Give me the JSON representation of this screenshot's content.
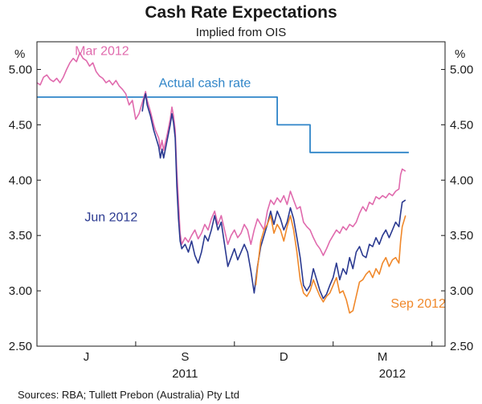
{
  "chart_data": {
    "type": "line",
    "title": "Cash Rate Expectations",
    "subtitle": "Implied from OIS",
    "unit_left": "%",
    "unit_right": "%",
    "ylim": [
      2.5,
      5.25
    ],
    "yticks": [
      "5.00",
      "4.50",
      "4.00",
      "3.50",
      "3.00",
      "2.50"
    ],
    "ytick_values": [
      5.0,
      4.5,
      4.0,
      3.5,
      3.0,
      2.5
    ],
    "x_range_months": [
      0,
      12.4
    ],
    "month_ticks": [
      0,
      3,
      6,
      9,
      12
    ],
    "month_labels": [
      {
        "label": "J",
        "month": 1.5
      },
      {
        "label": "S",
        "month": 4.5
      },
      {
        "label": "D",
        "month": 7.5
      },
      {
        "label": "M",
        "month": 10.5
      }
    ],
    "year_labels": [
      {
        "label": "2011",
        "month": 4.5
      },
      {
        "label": "2012",
        "month": 10.8
      }
    ],
    "source": "Sources: RBA; Tullett Prebon (Australia) Pty Ltd",
    "series": [
      {
        "name": "Actual cash rate",
        "color": "#2f85c8",
        "label_month": 3.7,
        "label_value": 4.84,
        "points": [
          [
            0,
            4.75
          ],
          [
            7.3,
            4.75
          ],
          [
            7.3,
            4.5
          ],
          [
            8.3,
            4.5
          ],
          [
            8.3,
            4.25
          ],
          [
            11.3,
            4.25
          ]
        ]
      },
      {
        "name": "Mar 2012",
        "color": "#e06aad",
        "label_month": 1.15,
        "label_value": 5.13,
        "points": [
          [
            0,
            4.88
          ],
          [
            0.1,
            4.86
          ],
          [
            0.2,
            4.93
          ],
          [
            0.3,
            4.95
          ],
          [
            0.4,
            4.91
          ],
          [
            0.5,
            4.89
          ],
          [
            0.6,
            4.92
          ],
          [
            0.7,
            4.88
          ],
          [
            0.8,
            4.93
          ],
          [
            0.9,
            5.0
          ],
          [
            1.0,
            5.06
          ],
          [
            1.1,
            5.1
          ],
          [
            1.2,
            5.07
          ],
          [
            1.3,
            5.15
          ],
          [
            1.4,
            5.1
          ],
          [
            1.5,
            5.08
          ],
          [
            1.6,
            5.03
          ],
          [
            1.7,
            5.06
          ],
          [
            1.8,
            4.98
          ],
          [
            1.9,
            4.94
          ],
          [
            2.0,
            4.92
          ],
          [
            2.1,
            4.88
          ],
          [
            2.2,
            4.9
          ],
          [
            2.3,
            4.86
          ],
          [
            2.4,
            4.9
          ],
          [
            2.5,
            4.85
          ],
          [
            2.6,
            4.82
          ],
          [
            2.7,
            4.78
          ],
          [
            2.8,
            4.68
          ],
          [
            2.9,
            4.72
          ],
          [
            3.0,
            4.55
          ],
          [
            3.1,
            4.6
          ],
          [
            3.2,
            4.7
          ],
          [
            3.3,
            4.8
          ],
          [
            3.35,
            4.72
          ],
          [
            3.45,
            4.62
          ],
          [
            3.55,
            4.5
          ],
          [
            3.6,
            4.45
          ],
          [
            3.7,
            4.38
          ],
          [
            3.75,
            4.28
          ],
          [
            3.8,
            4.36
          ],
          [
            3.85,
            4.27
          ],
          [
            3.95,
            4.4
          ],
          [
            4.05,
            4.55
          ],
          [
            4.1,
            4.66
          ],
          [
            4.15,
            4.58
          ],
          [
            4.2,
            4.45
          ],
          [
            4.25,
            4.08
          ],
          [
            4.3,
            3.8
          ],
          [
            4.35,
            3.52
          ],
          [
            4.4,
            3.42
          ],
          [
            4.5,
            3.48
          ],
          [
            4.6,
            3.44
          ],
          [
            4.7,
            3.5
          ],
          [
            4.8,
            3.55
          ],
          [
            4.9,
            3.47
          ],
          [
            5.0,
            3.52
          ],
          [
            5.1,
            3.6
          ],
          [
            5.2,
            3.55
          ],
          [
            5.3,
            3.65
          ],
          [
            5.4,
            3.72
          ],
          [
            5.5,
            3.6
          ],
          [
            5.6,
            3.68
          ],
          [
            5.7,
            3.55
          ],
          [
            5.8,
            3.42
          ],
          [
            5.9,
            3.5
          ],
          [
            6.0,
            3.55
          ],
          [
            6.1,
            3.48
          ],
          [
            6.2,
            3.52
          ],
          [
            6.3,
            3.6
          ],
          [
            6.4,
            3.55
          ],
          [
            6.5,
            3.42
          ],
          [
            6.6,
            3.55
          ],
          [
            6.7,
            3.65
          ],
          [
            6.8,
            3.6
          ],
          [
            6.9,
            3.55
          ],
          [
            7.0,
            3.72
          ],
          [
            7.1,
            3.82
          ],
          [
            7.2,
            3.78
          ],
          [
            7.3,
            3.84
          ],
          [
            7.4,
            3.8
          ],
          [
            7.5,
            3.86
          ],
          [
            7.6,
            3.78
          ],
          [
            7.7,
            3.9
          ],
          [
            7.8,
            3.82
          ],
          [
            7.9,
            3.74
          ],
          [
            8.0,
            3.76
          ],
          [
            8.1,
            3.62
          ],
          [
            8.2,
            3.58
          ],
          [
            8.3,
            3.55
          ],
          [
            8.4,
            3.48
          ],
          [
            8.5,
            3.42
          ],
          [
            8.6,
            3.38
          ],
          [
            8.7,
            3.32
          ],
          [
            8.8,
            3.38
          ],
          [
            8.9,
            3.45
          ],
          [
            9.0,
            3.5
          ],
          [
            9.1,
            3.55
          ],
          [
            9.2,
            3.52
          ],
          [
            9.3,
            3.58
          ],
          [
            9.4,
            3.55
          ],
          [
            9.5,
            3.6
          ],
          [
            9.6,
            3.58
          ],
          [
            9.7,
            3.62
          ],
          [
            9.8,
            3.7
          ],
          [
            9.9,
            3.76
          ],
          [
            10.0,
            3.72
          ],
          [
            10.1,
            3.8
          ],
          [
            10.2,
            3.78
          ],
          [
            10.3,
            3.85
          ],
          [
            10.4,
            3.83
          ],
          [
            10.5,
            3.86
          ],
          [
            10.6,
            3.84
          ],
          [
            10.7,
            3.88
          ],
          [
            10.8,
            3.86
          ],
          [
            10.9,
            3.9
          ],
          [
            11.0,
            3.92
          ],
          [
            11.05,
            4.05
          ],
          [
            11.1,
            4.1
          ],
          [
            11.2,
            4.08
          ]
        ]
      },
      {
        "name": "Jun 2012",
        "color": "#2a3990",
        "label_month": 1.45,
        "label_value": 3.63,
        "points": [
          [
            3.2,
            4.62
          ],
          [
            3.25,
            4.72
          ],
          [
            3.3,
            4.78
          ],
          [
            3.35,
            4.68
          ],
          [
            3.45,
            4.58
          ],
          [
            3.55,
            4.45
          ],
          [
            3.6,
            4.4
          ],
          [
            3.7,
            4.3
          ],
          [
            3.75,
            4.2
          ],
          [
            3.8,
            4.28
          ],
          [
            3.85,
            4.2
          ],
          [
            3.95,
            4.35
          ],
          [
            4.05,
            4.5
          ],
          [
            4.1,
            4.6
          ],
          [
            4.15,
            4.52
          ],
          [
            4.2,
            4.38
          ],
          [
            4.25,
            3.95
          ],
          [
            4.3,
            3.65
          ],
          [
            4.35,
            3.45
          ],
          [
            4.4,
            3.38
          ],
          [
            4.5,
            3.42
          ],
          [
            4.6,
            3.35
          ],
          [
            4.7,
            3.45
          ],
          [
            4.8,
            3.32
          ],
          [
            4.9,
            3.25
          ],
          [
            5.0,
            3.35
          ],
          [
            5.1,
            3.5
          ],
          [
            5.2,
            3.45
          ],
          [
            5.3,
            3.55
          ],
          [
            5.4,
            3.68
          ],
          [
            5.5,
            3.55
          ],
          [
            5.6,
            3.62
          ],
          [
            5.7,
            3.42
          ],
          [
            5.8,
            3.22
          ],
          [
            5.9,
            3.3
          ],
          [
            6.0,
            3.38
          ],
          [
            6.1,
            3.28
          ],
          [
            6.2,
            3.35
          ],
          [
            6.3,
            3.42
          ],
          [
            6.4,
            3.35
          ],
          [
            6.5,
            3.18
          ],
          [
            6.6,
            2.98
          ],
          [
            6.7,
            3.22
          ],
          [
            6.8,
            3.4
          ],
          [
            6.9,
            3.5
          ],
          [
            7.0,
            3.6
          ],
          [
            7.1,
            3.72
          ],
          [
            7.2,
            3.6
          ],
          [
            7.3,
            3.72
          ],
          [
            7.4,
            3.65
          ],
          [
            7.5,
            3.55
          ],
          [
            7.6,
            3.62
          ],
          [
            7.7,
            3.75
          ],
          [
            7.8,
            3.65
          ],
          [
            7.9,
            3.48
          ],
          [
            8.0,
            3.3
          ],
          [
            8.1,
            3.05
          ],
          [
            8.2,
            3.0
          ],
          [
            8.3,
            3.05
          ],
          [
            8.4,
            3.2
          ],
          [
            8.5,
            3.1
          ],
          [
            8.6,
            3.0
          ],
          [
            8.7,
            2.93
          ],
          [
            8.8,
            2.97
          ],
          [
            8.9,
            3.05
          ],
          [
            9.0,
            3.12
          ],
          [
            9.1,
            3.25
          ],
          [
            9.2,
            3.1
          ],
          [
            9.3,
            3.2
          ],
          [
            9.4,
            3.15
          ],
          [
            9.5,
            3.3
          ],
          [
            9.6,
            3.2
          ],
          [
            9.7,
            3.35
          ],
          [
            9.8,
            3.4
          ],
          [
            9.9,
            3.32
          ],
          [
            10.0,
            3.3
          ],
          [
            10.1,
            3.42
          ],
          [
            10.2,
            3.4
          ],
          [
            10.3,
            3.48
          ],
          [
            10.4,
            3.42
          ],
          [
            10.5,
            3.5
          ],
          [
            10.6,
            3.55
          ],
          [
            10.7,
            3.48
          ],
          [
            10.8,
            3.55
          ],
          [
            10.9,
            3.62
          ],
          [
            11.0,
            3.58
          ],
          [
            11.05,
            3.7
          ],
          [
            11.1,
            3.8
          ],
          [
            11.2,
            3.82
          ]
        ]
      },
      {
        "name": "Sep 2012",
        "color": "#f0882a",
        "label_month": 10.75,
        "label_value": 2.85,
        "points": [
          [
            6.65,
            3.05
          ],
          [
            6.7,
            3.2
          ],
          [
            6.8,
            3.45
          ],
          [
            6.9,
            3.55
          ],
          [
            7.0,
            3.6
          ],
          [
            7.1,
            3.68
          ],
          [
            7.2,
            3.52
          ],
          [
            7.3,
            3.6
          ],
          [
            7.4,
            3.55
          ],
          [
            7.5,
            3.45
          ],
          [
            7.6,
            3.58
          ],
          [
            7.7,
            3.68
          ],
          [
            7.8,
            3.55
          ],
          [
            7.9,
            3.35
          ],
          [
            8.0,
            3.1
          ],
          [
            8.1,
            2.98
          ],
          [
            8.2,
            2.95
          ],
          [
            8.3,
            3.0
          ],
          [
            8.4,
            3.1
          ],
          [
            8.5,
            3.02
          ],
          [
            8.6,
            2.95
          ],
          [
            8.7,
            2.9
          ],
          [
            8.8,
            2.95
          ],
          [
            8.9,
            2.98
          ],
          [
            9.0,
            3.05
          ],
          [
            9.1,
            3.12
          ],
          [
            9.2,
            2.98
          ],
          [
            9.3,
            3.0
          ],
          [
            9.4,
            2.92
          ],
          [
            9.5,
            2.8
          ],
          [
            9.6,
            2.82
          ],
          [
            9.7,
            2.95
          ],
          [
            9.8,
            3.08
          ],
          [
            9.9,
            3.1
          ],
          [
            10.0,
            3.15
          ],
          [
            10.1,
            3.18
          ],
          [
            10.2,
            3.12
          ],
          [
            10.3,
            3.2
          ],
          [
            10.4,
            3.15
          ],
          [
            10.5,
            3.25
          ],
          [
            10.6,
            3.3
          ],
          [
            10.7,
            3.22
          ],
          [
            10.8,
            3.28
          ],
          [
            10.9,
            3.3
          ],
          [
            11.0,
            3.25
          ],
          [
            11.05,
            3.45
          ],
          [
            11.1,
            3.58
          ],
          [
            11.2,
            3.68
          ]
        ]
      }
    ]
  }
}
